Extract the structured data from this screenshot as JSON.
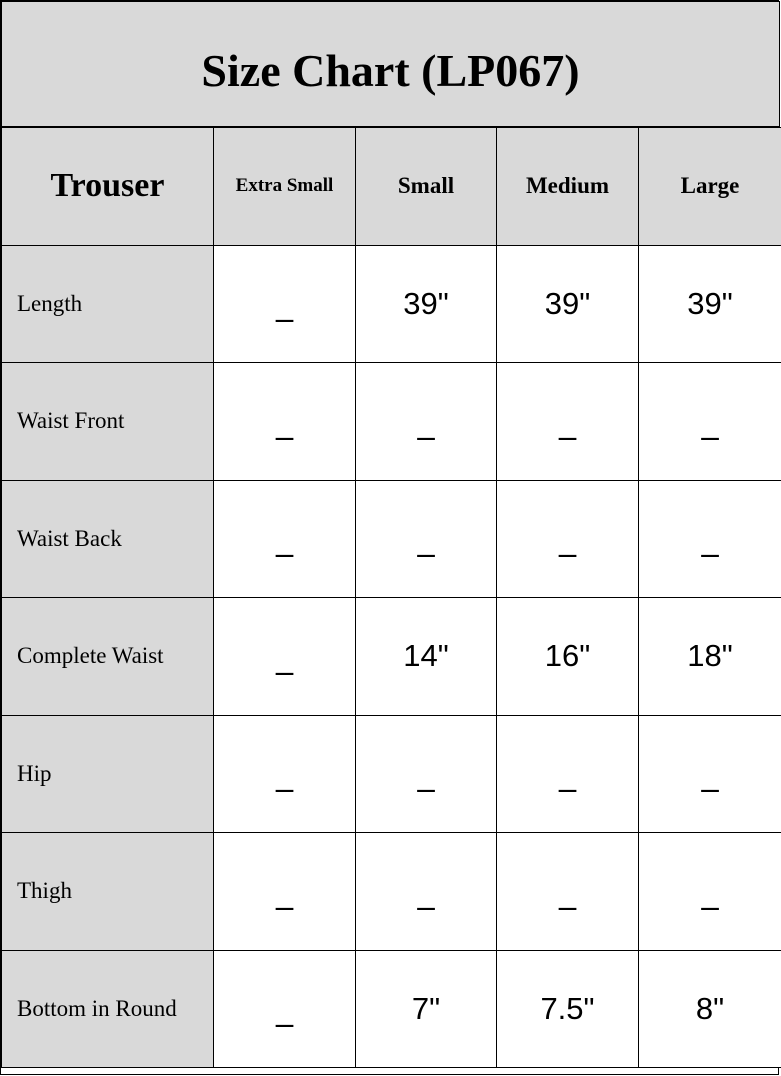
{
  "title": "Size Chart (LP067)",
  "headers": [
    "Trouser",
    "Extra Small",
    "Small",
    "Medium",
    "Large"
  ],
  "rows": [
    {
      "label": "Length",
      "values": [
        "–",
        "39\"",
        "39\"",
        "39\""
      ]
    },
    {
      "label": "Waist Front",
      "values": [
        "–",
        "–",
        "–",
        "–"
      ]
    },
    {
      "label": "Waist Back",
      "values": [
        "–",
        "–",
        "–",
        "–"
      ]
    },
    {
      "label": "Complete Waist",
      "values": [
        "–",
        "14\"",
        "16\"",
        "18\""
      ]
    },
    {
      "label": "Hip",
      "values": [
        "–",
        "–",
        "–",
        "–"
      ]
    },
    {
      "label": "Thigh",
      "values": [
        "–",
        "–",
        "–",
        "–"
      ]
    },
    {
      "label": "Bottom in Round",
      "values": [
        "–",
        "7\"",
        "7.5\"",
        "8\""
      ]
    }
  ],
  "colors": {
    "header_bg": "#d9d9d9",
    "cell_bg": "#ffffff",
    "border": "#000000"
  }
}
